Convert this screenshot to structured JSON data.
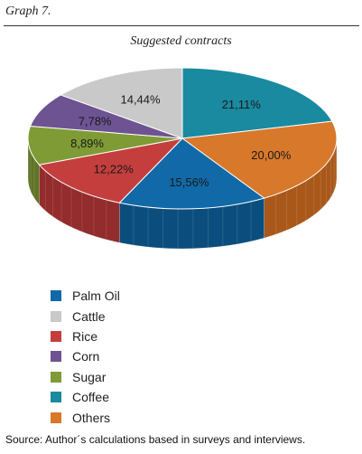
{
  "header": {
    "graph_label": "Graph 7."
  },
  "source_note": "Source: Author´s calculations based in surveys and interviews.",
  "chart_data": {
    "type": "pie",
    "title": "Suggested contracts",
    "style": "3d",
    "slices": [
      {
        "label": "Coffee",
        "value": 21.11,
        "value_label": "21,11%",
        "color": "#1a8aa0",
        "side_color": "#136a7b"
      },
      {
        "label": "Others",
        "value": 20.0,
        "value_label": "20,00%",
        "color": "#d7782a",
        "side_color": "#a9581a"
      },
      {
        "label": "Palm Oil",
        "value": 15.56,
        "value_label": "15,56%",
        "color": "#1169a7",
        "side_color": "#0b4e7e"
      },
      {
        "label": "Rice",
        "value": 12.22,
        "value_label": "12,22%",
        "color": "#c43e3e",
        "side_color": "#932c2c"
      },
      {
        "label": "Sugar",
        "value": 8.89,
        "value_label": "8,89%",
        "color": "#7f9b35",
        "side_color": "#5e7426"
      },
      {
        "label": "Corn",
        "value": 7.78,
        "value_label": "7,78%",
        "color": "#6e5392",
        "side_color": "#503b6c"
      },
      {
        "label": "Cattle",
        "value": 14.44,
        "value_label": "14,44%",
        "color": "#c9c9c9",
        "side_color": "#9e9e9e"
      }
    ],
    "legend": [
      {
        "label": "Palm Oil",
        "color": "#1169a7"
      },
      {
        "label": "Cattle",
        "color": "#c9c9c9"
      },
      {
        "label": "Rice",
        "color": "#c43e3e"
      },
      {
        "label": "Corn",
        "color": "#6e5392"
      },
      {
        "label": "Sugar",
        "color": "#7f9b35"
      },
      {
        "label": "Coffee",
        "color": "#1a8aa0"
      },
      {
        "label": "Others",
        "color": "#d7782a"
      }
    ],
    "legend_position": "bottom-left"
  }
}
